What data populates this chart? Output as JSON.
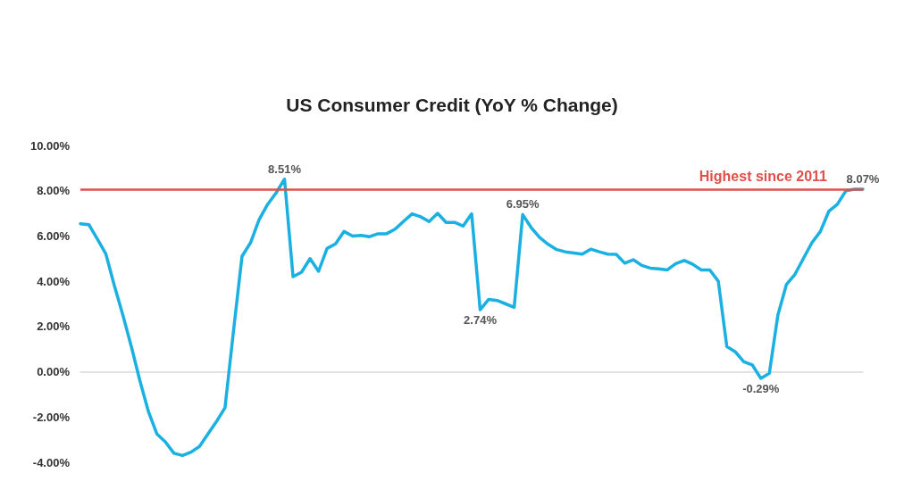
{
  "chart_data": {
    "type": "line",
    "title": "US Consumer Credit (YoY % Change)",
    "categories": [
      null,
      null,
      null,
      null,
      null,
      null,
      null,
      null,
      null,
      null,
      null,
      null,
      null,
      null,
      null,
      null,
      null,
      null,
      null,
      null,
      null,
      null,
      null,
      null,
      null,
      null,
      null,
      null,
      null,
      null,
      null,
      null,
      null,
      null,
      null,
      null,
      null,
      null,
      null,
      null,
      null,
      null,
      null,
      null,
      null,
      null,
      null,
      null,
      null,
      null,
      null,
      null,
      null,
      null,
      null,
      null,
      null,
      null,
      null,
      null,
      null,
      null,
      null,
      null,
      null,
      null,
      null,
      null,
      null,
      null,
      null,
      null,
      null,
      null,
      null,
      null,
      null,
      null,
      null,
      null,
      null,
      null,
      null,
      null,
      null,
      null,
      null,
      null,
      null,
      null,
      null,
      null,
      null
    ],
    "series": [
      {
        "color": "#1ab0e2",
        "values": [
          6.54,
          6.5,
          5.86,
          5.2,
          3.8,
          2.5,
          1.1,
          -0.4,
          -1.76,
          -2.75,
          -3.1,
          -3.6,
          -3.7,
          -3.55,
          -3.3,
          -2.75,
          -2.2,
          -1.59,
          1.8,
          5.1,
          5.7,
          6.71,
          7.39,
          7.9,
          8.51,
          4.2,
          4.4,
          5.0,
          4.44,
          5.45,
          5.65,
          6.2,
          6.0,
          6.03,
          5.97,
          6.1,
          6.1,
          6.3,
          6.65,
          6.98,
          6.85,
          6.64,
          7.0,
          6.6,
          6.6,
          6.44,
          6.98,
          2.74,
          3.2,
          3.15,
          3.0,
          2.85,
          6.95,
          6.37,
          5.93,
          5.63,
          5.4,
          5.3,
          5.25,
          5.2,
          5.42,
          5.3,
          5.2,
          5.19,
          4.8,
          4.95,
          4.7,
          4.58,
          4.55,
          4.5,
          4.78,
          4.92,
          4.75,
          4.5,
          4.5,
          4.0,
          1.12,
          0.88,
          0.44,
          0.3,
          -0.29,
          -0.07,
          2.5,
          3.85,
          4.3,
          5.0,
          5.7,
          6.2,
          7.1,
          7.4,
          8.0,
          8.07,
          8.07
        ],
        "value_labels": [
          null,
          null,
          null,
          null,
          null,
          null,
          null,
          null,
          null,
          null,
          null,
          null,
          null,
          null,
          null,
          null,
          null,
          null,
          null,
          null,
          null,
          null,
          null,
          null,
          "8.51%",
          null,
          null,
          null,
          null,
          null,
          null,
          null,
          null,
          null,
          null,
          null,
          null,
          null,
          null,
          null,
          null,
          null,
          null,
          null,
          null,
          null,
          null,
          "2.74%",
          null,
          null,
          null,
          null,
          "6.95%",
          null,
          null,
          null,
          null,
          null,
          null,
          null,
          null,
          null,
          null,
          null,
          null,
          null,
          null,
          null,
          null,
          null,
          null,
          null,
          null,
          null,
          null,
          null,
          null,
          null,
          null,
          null,
          "-0.29%",
          null,
          null,
          null,
          null,
          null,
          null,
          null,
          null,
          null,
          null,
          null,
          "8.07%"
        ]
      }
    ],
    "ylim": [
      -4,
      10
    ],
    "yticks": [
      {
        "value": -4,
        "label": "-4.00%"
      },
      {
        "value": -2,
        "label": "-2.00%"
      },
      {
        "value": 0,
        "label": "0.00%"
      },
      {
        "value": 2,
        "label": "2.00%"
      },
      {
        "value": 4,
        "label": "4.00%"
      },
      {
        "value": 6,
        "label": "6.00%"
      },
      {
        "value": 8,
        "label": "8.00%"
      },
      {
        "value": 10,
        "label": "10.00%"
      }
    ],
    "ref_lines": [
      {
        "axis": "y",
        "value": 8.07,
        "label": "Highest since 2011",
        "color": "#e0504a"
      }
    ],
    "grid": false,
    "marker": "none",
    "line_style": "solid",
    "tick_labels": "y"
  }
}
